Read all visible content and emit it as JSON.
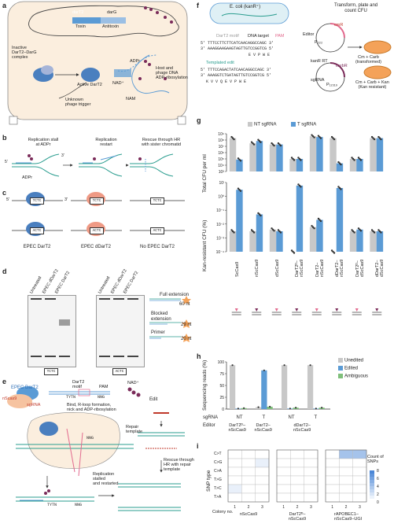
{
  "colors": {
    "blue": "#5b9bd5",
    "grey": "#c8c8c8",
    "green": "#7fbf7b",
    "purple": "#7b2c5a",
    "pink": "#e26a8e",
    "cellbg": "#fbeede"
  },
  "a": {
    "label": "a",
    "darT2": "darT2",
    "darG": "darG",
    "toxin": "Toxin",
    "antitoxin": "Antitoxin",
    "inactive": "Inactive\nDarT2–DarG\ncomplex",
    "active": "Active DarT2",
    "adpr": "ADPr",
    "nad": "NAD⁺",
    "nam": "NAM",
    "host": "Host and\nphage DNA\nADP-ribosylation",
    "trigger": "Unknown\nphage trigger"
  },
  "b": {
    "label": "b",
    "stall": "Replication stall\nat ADPr",
    "restart": "Replication\nrestart",
    "rescue": "Rescue through HR\nwith sister chromatid",
    "adpr": "ADPr",
    "p5": "5'",
    "p3": "3'"
  },
  "c": {
    "label": "c",
    "motif1": "TCTC",
    "motif2": "ACTC",
    "epec": "EPEC DarT2",
    "edart": "EPEC dDarT2",
    "none": "No EPEC DarT2",
    "p5": "5'",
    "p3": "3'"
  },
  "d": {
    "label": "d",
    "lanes1": [
      "Untreated",
      "EPEC dDarT2",
      "EPEC DarT2"
    ],
    "lanes2": [
      "Untreated",
      "EPEC dDarT2",
      "EPEC DarT2"
    ],
    "full": "Full extension",
    "blocked": "Blocked\nextension",
    "primer": "Primer",
    "n60": "60 nt",
    "n29": "29 nt",
    "n20": "20 nt",
    "m1": "TCTC",
    "m2": "ACTC"
  },
  "e": {
    "label": "e",
    "epec": "EPEC DarT2",
    "nscas": "nScas9",
    "sgrna": "sgRNA",
    "motif": "DarT2\nmotif",
    "pam": "PAM",
    "nad": "NAD⁺",
    "tytn": "TYTN",
    "nng": "NNG",
    "bind": "Bind, R-loop formation,\nnick and ADP-ribosylation",
    "edit": "Edit",
    "repair": "Repair\ntemplate",
    "rescue": "Rescue through\nHR with repair\ntemplate",
    "stalled": "Replication\nstalled\nand restarted"
  },
  "f": {
    "label": "f",
    "ecoli": "E. coli (kanR⁺)",
    "motif": "DarT2 motif",
    "target": "DNA target",
    "pam": "PAM",
    "seq1": "5' TTTCCTTCTTCATCAACAGGCCAGC 3'",
    "seq2": "3' AAAGGAAGAAGTAGTTGTCCGGTCG 5'",
    "aa1": "E  V  P  W  E",
    "templated": "Templated edit",
    "seq3": "5' TTTCCAGACTATCAACAGGCCAGC 3'",
    "seq4": "3' AAAGGTCTGATAGTTGTCCGGTCG 5'",
    "aa2": "K  V  V  Q  E  V  P  W  E",
    "transform": "Transform, plate and\ncount CFU",
    "editor": "Editor",
    "pbad": "P₂₂₂",
    "cmr": "cmR",
    "kanr": "kanR RT",
    "carbr": "carbR",
    "sg": "sgRNA",
    "pj": "P₁₂₃₁₉",
    "cmcarb": "Cm + Carb\n(transformed)",
    "cmkan": "Cm + Carb + Kan\n(Kan resistant)"
  },
  "g": {
    "label": "g",
    "legend": [
      "NT sgRNA",
      "T sgRNA"
    ],
    "ylabel1": "Total CFU per ml",
    "ylabel2": "Kan-resistant CFU (%)",
    "yticks1": [
      "10⁹",
      "10⁸",
      "10⁷",
      "10⁶",
      "10⁵",
      "10⁴",
      "10³"
    ],
    "yticks2": [
      "10ⁱ",
      "10⁰",
      "10⁻¹",
      "10⁻²",
      "10⁻³",
      "10⁻⁴"
    ],
    "categories": [
      "ScCas9",
      "nScCas9",
      "dScCas9",
      "DarT2D-nScCas9",
      "DarT2-nScCas9",
      "dDarT2-nScCas9",
      "DarT2D-dScCas9",
      "dDarT2-dScCas9"
    ],
    "xlabels": [
      "ScCas9",
      "nScCas9",
      "dScCas9",
      "DarT2ᴰ–\nnScCas9",
      "DarT2–\nnScCas9",
      "dDarT2–\nnScCas9",
      "DarT2ᴰ–\ndScCas9",
      "dDarT2–\ndScCas9"
    ]
  },
  "h": {
    "label": "h",
    "ylabel": "Sequencing reads (%)",
    "yticks": [
      "100",
      "75",
      "50",
      "25",
      "0"
    ],
    "legend": [
      "Unedited",
      "Edited",
      "Ambiguous"
    ],
    "sgrna_label": "sgRNA",
    "editor_label": "Editor",
    "sgrna": [
      "NT",
      "T",
      "NT",
      "T"
    ],
    "editors": [
      "DarT2ᴰ–\nnScCas9",
      "DarT2–\nnScCas9",
      "dDarT2–\nnScCas9"
    ]
  },
  "i": {
    "label": "i",
    "ylabel": "SNP type",
    "rows": [
      "C>T",
      "C>G",
      "C>A",
      "T>G",
      "T>C",
      "T>A"
    ],
    "colony": "Colony no.",
    "cols": [
      "1",
      "2",
      "3"
    ],
    "groups": [
      "nScCas9",
      "DarT2ᴰ–\nnScCas9",
      "rAPOBEC1–\nnScCas9–UGI"
    ],
    "legend_title": "Count of\nSNPs",
    "legend_ticks": [
      "8",
      "6",
      "4",
      "2",
      "0"
    ]
  },
  "chart_data": [
    {
      "type": "bar",
      "panel": "g-top",
      "ylabel": "Total CFU per ml",
      "log": true,
      "ylim": [
        1000,
        1000000000
      ],
      "categories": [
        "ScCas9",
        "nScCas9",
        "dScCas9",
        "DarT2D-nScCas9",
        "DarT2-nScCas9",
        "dDarT2-nScCas9",
        "DarT2D-dScCas9",
        "dDarT2-dScCas9"
      ],
      "series": [
        {
          "name": "NT sgRNA",
          "values": [
            200000000,
            30000000,
            20000000,
            100000,
            400000000,
            200000000,
            100000,
            200000000
          ]
        },
        {
          "name": "T sgRNA",
          "values": [
            80000,
            70000000,
            20000000,
            100000,
            300000000,
            20000,
            100000,
            200000000
          ]
        }
      ]
    },
    {
      "type": "bar",
      "panel": "g-bottom",
      "ylabel": "Kan-resistant CFU (%)",
      "log": true,
      "ylim": [
        0.0001,
        10
      ],
      "categories": [
        "ScCas9",
        "nScCas9",
        "dScCas9",
        "DarT2D-nScCas9",
        "DarT2-nScCas9",
        "dDarT2-nScCas9",
        "DarT2D-dScCas9",
        "dDarT2-dScCas9"
      ],
      "series": [
        {
          "name": "NT sgRNA",
          "values": [
            0.003,
            0.003,
            0.004,
            0.0001,
            0.006,
            0.0001,
            0.003,
            0.003
          ]
        },
        {
          "name": "T sgRNA",
          "values": [
            3,
            0.05,
            0.003,
            6,
            0.02,
            4,
            0.004,
            0.003
          ]
        }
      ]
    },
    {
      "type": "bar",
      "panel": "h",
      "ylabel": "Sequencing reads (%)",
      "ylim": [
        0,
        100
      ],
      "categories": [
        "NT",
        "T",
        "NT",
        "T"
      ],
      "series": [
        {
          "name": "Unedited",
          "values": [
            93,
            4,
            93,
            93
          ]
        },
        {
          "name": "Edited",
          "values": [
            1,
            82,
            1,
            1
          ]
        },
        {
          "name": "Ambiguous",
          "values": [
            2,
            5,
            3,
            3
          ]
        }
      ]
    },
    {
      "type": "heatmap",
      "panel": "i",
      "ylabel": "SNP type",
      "xlabel": "Colony no.",
      "rows": [
        "C>T",
        "C>G",
        "C>A",
        "T>G",
        "T>C",
        "T>A"
      ],
      "groups": [
        "nScCas9",
        "DarT2D-nScCas9",
        "rAPOBEC1-nScCas9-UGI"
      ],
      "values": [
        [
          [
            0,
            0,
            0
          ],
          [
            0,
            0,
            1
          ],
          [
            0,
            0,
            0
          ],
          [
            0,
            0,
            0
          ],
          [
            1,
            0,
            0
          ],
          [
            0,
            0,
            0
          ]
        ],
        [
          [
            0,
            0,
            0
          ],
          [
            0,
            0,
            0
          ],
          [
            0,
            0,
            0
          ],
          [
            0,
            0,
            0
          ],
          [
            0,
            0,
            0
          ],
          [
            0,
            0,
            0
          ]
        ],
        [
          [
            0,
            4,
            4
          ],
          [
            0,
            0,
            0
          ],
          [
            0,
            0,
            0
          ],
          [
            0,
            0,
            0
          ],
          [
            0,
            0,
            0
          ],
          [
            0,
            0,
            0
          ]
        ]
      ]
    }
  ]
}
